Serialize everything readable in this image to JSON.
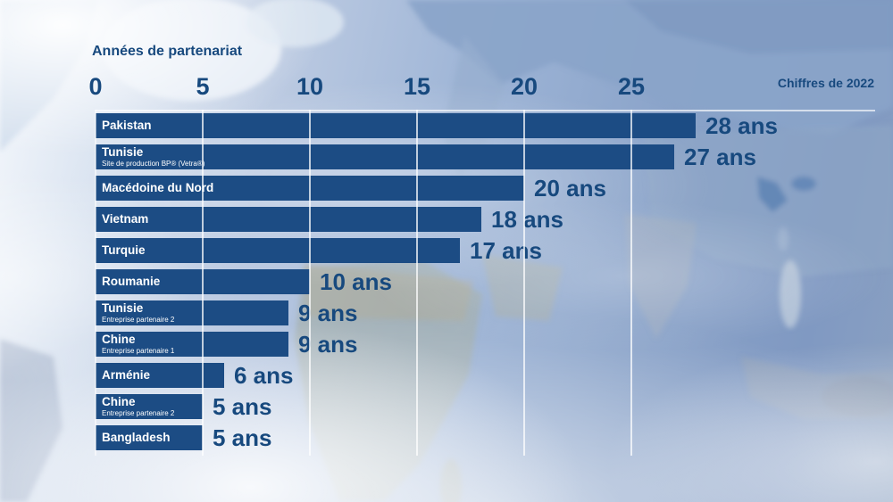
{
  "header": {
    "title": "Années de partenariat",
    "note": "Chiffres de 2022"
  },
  "chart_data": {
    "type": "bar",
    "orientation": "horizontal",
    "title": "Années de partenariat",
    "annotation": "Chiffres de 2022",
    "unit": "ans",
    "xlim": [
      0,
      36
    ],
    "x_ticks": [
      0,
      5,
      10,
      15,
      20,
      25
    ],
    "grid": true,
    "rows": [
      {
        "label": "Pakistan",
        "sublabel": "",
        "value": 28,
        "value_label": "28 ans"
      },
      {
        "label": "Tunisie",
        "sublabel": "Site de production BP® (Vetra®)",
        "value": 27,
        "value_label": "27 ans"
      },
      {
        "label": "Macédoine du Nord",
        "sublabel": "",
        "value": 20,
        "value_label": "20 ans"
      },
      {
        "label": "Vietnam",
        "sublabel": "",
        "value": 18,
        "value_label": "18 ans"
      },
      {
        "label": "Turquie",
        "sublabel": "",
        "value": 17,
        "value_label": "17 ans"
      },
      {
        "label": "Roumanie",
        "sublabel": "",
        "value": 10,
        "value_label": "10 ans"
      },
      {
        "label": "Tunisie",
        "sublabel": "Entreprise partenaire 2",
        "value": 9,
        "value_label": "9 ans"
      },
      {
        "label": "Chine",
        "sublabel": "Entreprise partenaire 1",
        "value": 9,
        "value_label": "9 ans"
      },
      {
        "label": "Arménie",
        "sublabel": "",
        "value": 6,
        "value_label": "6 ans"
      },
      {
        "label": "Chine",
        "sublabel": "Entreprise partenaire 2",
        "value": 5,
        "value_label": "5 ans"
      },
      {
        "label": "Bangladesh",
        "sublabel": "",
        "value": 5,
        "value_label": "5 ans"
      }
    ]
  },
  "colors": {
    "bar": "#1c4c84",
    "text": "#17497e",
    "bar_label": "#ffffff",
    "gridline": "rgba(255,255,255,0.72)"
  }
}
